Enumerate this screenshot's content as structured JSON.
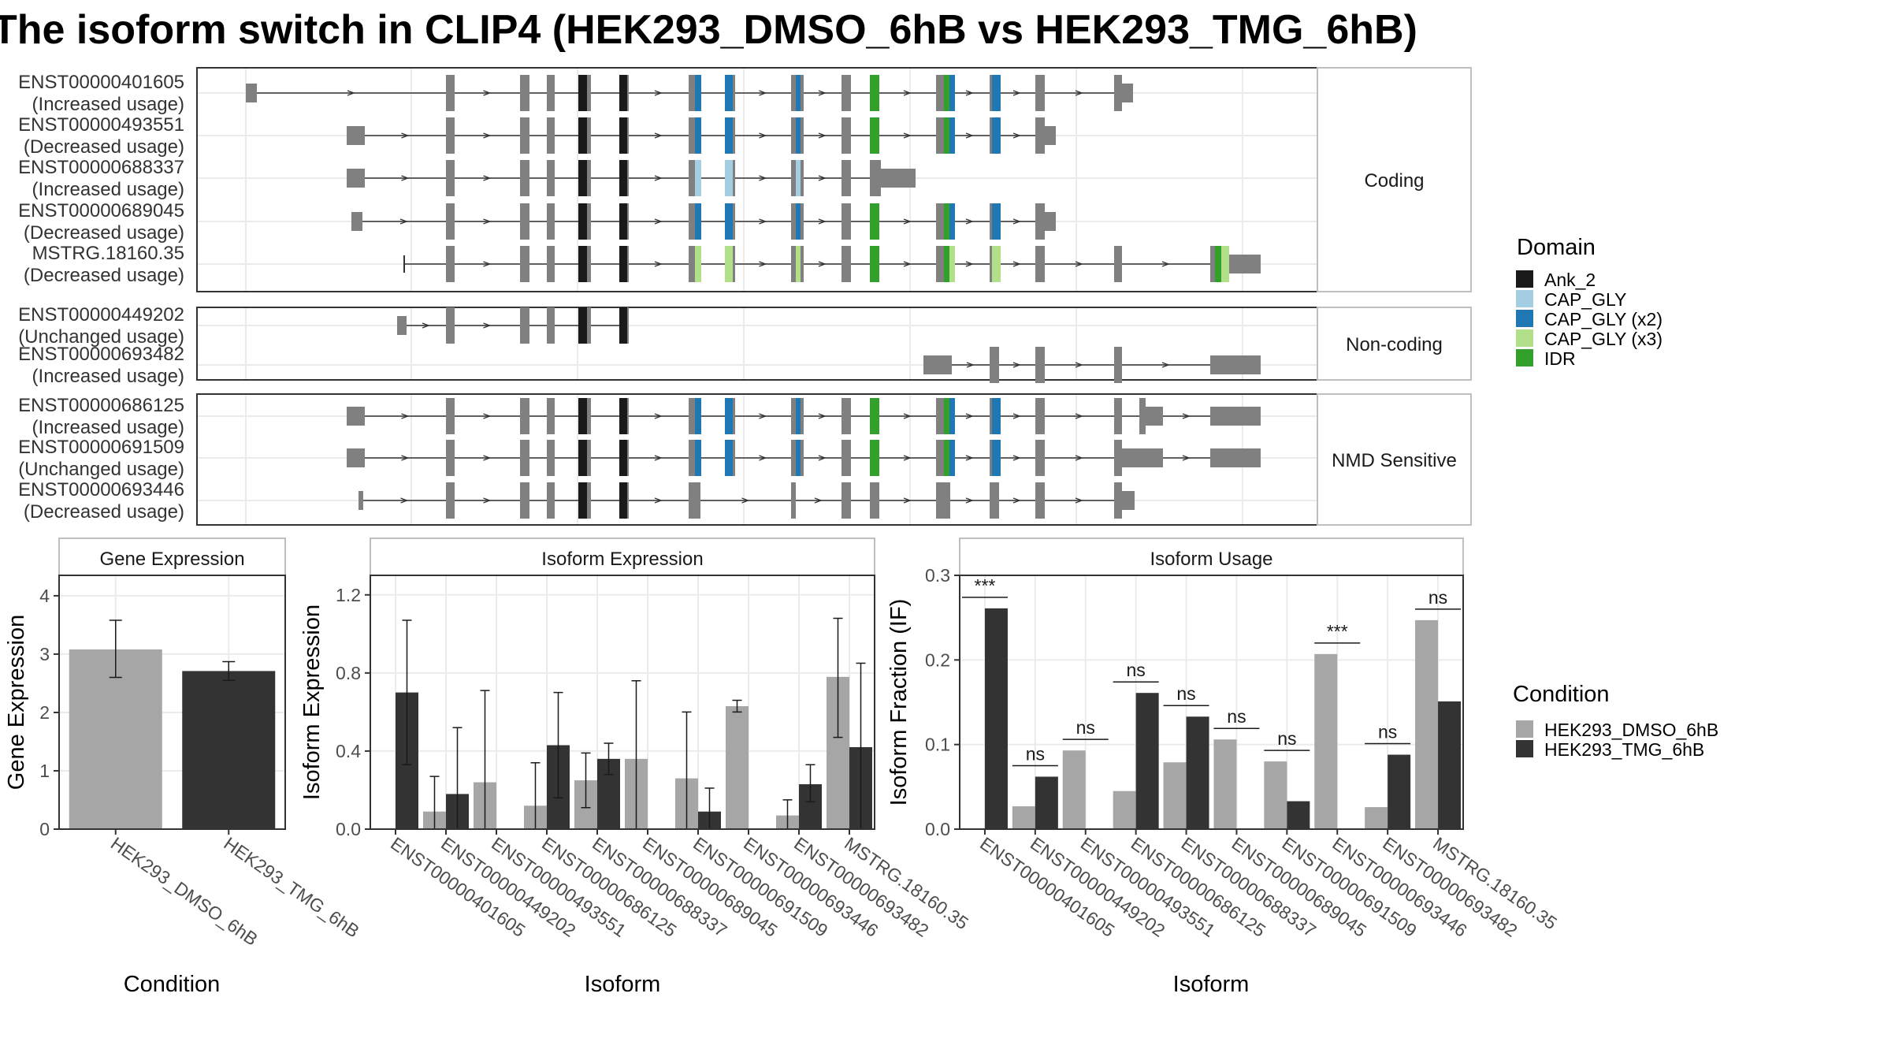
{
  "title": "The isoform switch in CLIP4 (HEK293_DMSO_6hB vs HEK293_TMG_6hB)",
  "colors": {
    "Ank_2": "#1a1a1a",
    "CAP_GLY": "#a6cee3",
    "CAP_GLY (x2)": "#1f78b4",
    "CAP_GLY (x3)": "#b2df8a",
    "IDR": "#33a02c",
    "exon": "#808080",
    "dmso": "#a6a6a6",
    "tmg": "#333333"
  },
  "structure": {
    "panels": [
      {
        "label": "Coding",
        "rows": [
          {
            "id": "ENST00000401605",
            "status": "(Increased usage)"
          },
          {
            "id": "ENST00000493551",
            "status": "(Decreased usage)"
          },
          {
            "id": "ENST00000688337",
            "status": "(Increased usage)"
          },
          {
            "id": "ENST00000689045",
            "status": "(Decreased usage)"
          },
          {
            "id": "MSTRG.18160.35",
            "status": "(Decreased usage)"
          }
        ]
      },
      {
        "label": "Non-coding",
        "rows": [
          {
            "id": "ENST00000449202",
            "status": "(Unchanged usage)"
          },
          {
            "id": "ENST00000693482",
            "status": "(Increased usage)"
          }
        ]
      },
      {
        "label": "NMD Sensitive",
        "rows": [
          {
            "id": "ENST00000686125",
            "status": "(Increased usage)"
          },
          {
            "id": "ENST00000691509",
            "status": "(Unchanged usage)"
          },
          {
            "id": "ENST00000693446",
            "status": "(Decreased usage)"
          }
        ]
      }
    ]
  },
  "domain_legend": {
    "title": "Domain",
    "items": [
      "Ank_2",
      "CAP_GLY",
      "CAP_GLY (x2)",
      "CAP_GLY (x3)",
      "IDR"
    ]
  },
  "condition_legend": {
    "title": "Condition",
    "items": [
      "HEK293_DMSO_6hB",
      "HEK293_TMG_6hB"
    ]
  },
  "chart_data": [
    {
      "type": "bar",
      "title": "Gene Expression",
      "xlabel": "Condition",
      "ylabel": "Gene Expression",
      "ylim": [
        0,
        4.35
      ],
      "yticks": [
        0,
        1,
        2,
        3,
        4
      ],
      "categories": [
        "HEK293_DMSO_6hB",
        "HEK293_TMG_6hB"
      ],
      "values": [
        3.08,
        2.71
      ],
      "error": [
        [
          2.6,
          3.58
        ],
        [
          2.55,
          2.87
        ]
      ]
    },
    {
      "type": "bar",
      "title": "Isoform Expression",
      "xlabel": "Isoform",
      "ylabel": "Isoform Expression",
      "ylim": [
        0,
        1.3
      ],
      "yticks": [
        "0.0",
        "0.4",
        "0.8",
        "1.2"
      ],
      "categories": [
        "ENST00000401605",
        "ENST00000449202",
        "ENST00000493551",
        "ENST00000686125",
        "ENST00000688337",
        "ENST00000689045",
        "ENST00000691509",
        "ENST00000693446",
        "ENST00000693482",
        "MSTRG.18160.35"
      ],
      "series": [
        {
          "name": "HEK293_DMSO_6hB",
          "values": [
            0.0,
            0.09,
            0.24,
            0.12,
            0.25,
            0.36,
            0.26,
            0.63,
            0.07,
            0.78
          ],
          "error": [
            null,
            [
              0,
              0.27
            ],
            [
              0,
              0.71
            ],
            [
              0,
              0.34
            ],
            [
              0.11,
              0.39
            ],
            [
              0,
              0.76
            ],
            [
              0,
              0.6
            ],
            [
              0.6,
              0.66
            ],
            [
              0,
              0.15
            ],
            [
              0.47,
              1.08
            ]
          ]
        },
        {
          "name": "HEK293_TMG_6hB",
          "values": [
            0.7,
            0.18,
            0.0,
            0.43,
            0.36,
            0.0,
            0.09,
            0.0,
            0.23,
            0.42
          ],
          "error": [
            [
              0.33,
              1.07
            ],
            [
              0,
              0.52
            ],
            null,
            [
              0.16,
              0.7
            ],
            [
              0.28,
              0.44
            ],
            null,
            [
              0,
              0.21
            ],
            null,
            [
              0.14,
              0.33
            ],
            [
              0,
              0.85
            ]
          ]
        }
      ]
    },
    {
      "type": "bar",
      "title": "Isoform Usage",
      "xlabel": "Isoform",
      "ylabel": "Isoform Fraction (IF)",
      "ylim": [
        0,
        0.3
      ],
      "yticks": [
        "0.0",
        "0.1",
        "0.2",
        "0.3"
      ],
      "categories": [
        "ENST00000401605",
        "ENST00000449202",
        "ENST00000493551",
        "ENST00000686125",
        "ENST00000688337",
        "ENST00000689045",
        "ENST00000691509",
        "ENST00000693446",
        "ENST00000693482",
        "MSTRG.18160.35"
      ],
      "series": [
        {
          "name": "HEK293_DMSO_6hB",
          "values": [
            0.0,
            0.027,
            0.093,
            0.045,
            0.079,
            0.106,
            0.08,
            0.207,
            0.026,
            0.247
          ]
        },
        {
          "name": "HEK293_TMG_6hB",
          "values": [
            0.261,
            0.062,
            0.0,
            0.161,
            0.133,
            0.0,
            0.033,
            0.0,
            0.088,
            0.151
          ]
        }
      ],
      "significance": [
        "***",
        "ns",
        "ns",
        "ns",
        "ns",
        "ns",
        "ns",
        "***",
        "ns",
        "ns"
      ]
    }
  ]
}
